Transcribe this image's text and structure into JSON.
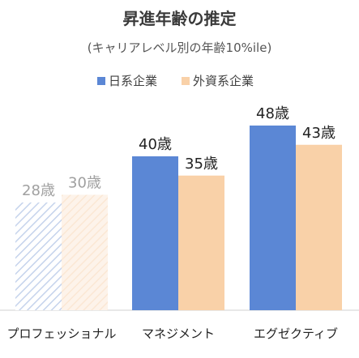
{
  "chart_data": {
    "type": "bar",
    "title": "昇進年齢の推定",
    "subtitle": "(キャリアレベル別の年齢10%ile)",
    "categories": [
      "プロフェッショナル",
      "マネジメント",
      "エグゼクティブ"
    ],
    "series": [
      {
        "name": "日系企業",
        "values": [
          28,
          40,
          48
        ],
        "labels": [
          "28歳",
          "40歳",
          "48歳"
        ],
        "color": "#5B87D5",
        "faded_color": "#C5D3EC"
      },
      {
        "name": "外資系企業",
        "values": [
          30,
          35,
          43
        ],
        "labels": [
          "30歳",
          "35歳",
          "43歳"
        ],
        "color": "#F9D1A8",
        "faded_color": "#FBE7D4"
      }
    ],
    "faded_categories": [
      "プロフェッショナル"
    ],
    "ylim": [
      0,
      48
    ],
    "grid": false,
    "legend_position": "top",
    "value_label_color": "#222222",
    "faded_label_color": "#A0A0A0",
    "axis_line_color": "#D0D0D0"
  }
}
